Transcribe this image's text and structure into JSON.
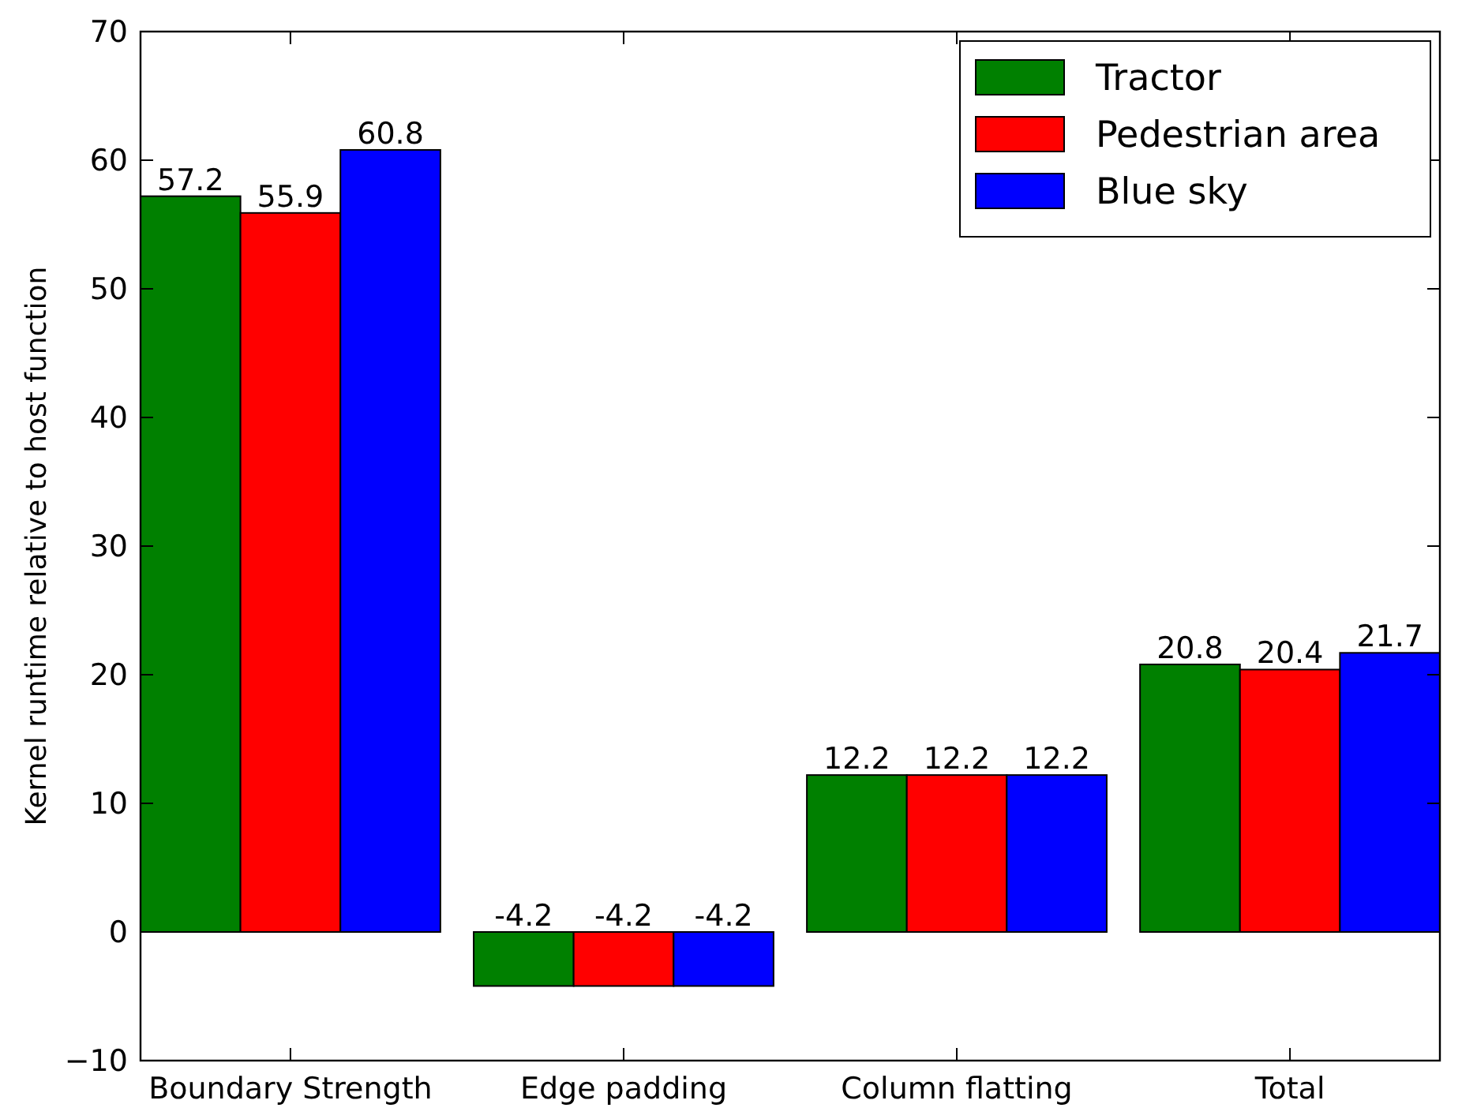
{
  "chart_data": {
    "type": "bar",
    "ylabel": "Kernel runtime relative to host function",
    "categories": [
      "Boundary Strength",
      "Edge padding",
      "Column flatting",
      "Total"
    ],
    "series": [
      {
        "name": "Tractor",
        "color": "#008000",
        "values": [
          57.2,
          -4.2,
          12.2,
          20.8
        ]
      },
      {
        "name": "Pedestrian area",
        "color": "#ff0000",
        "values": [
          55.9,
          -4.2,
          12.2,
          20.4
        ]
      },
      {
        "name": "Blue sky",
        "color": "#0000ff",
        "values": [
          60.8,
          -4.2,
          12.2,
          21.7
        ]
      }
    ],
    "ylim": [
      -10,
      70
    ],
    "yticks": [
      {
        "value": -10,
        "label": "−10"
      },
      0,
      10,
      20,
      30,
      40,
      50,
      60,
      70
    ],
    "data_labels": true,
    "legend": "top right",
    "grid": false
  }
}
